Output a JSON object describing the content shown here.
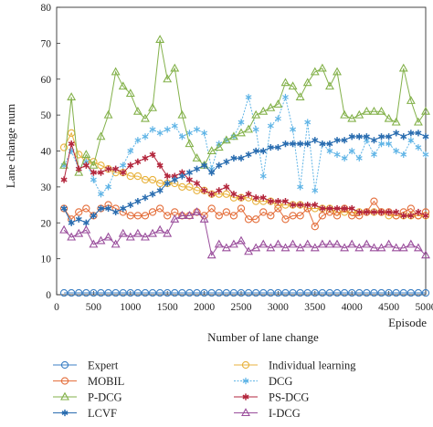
{
  "chart_data": {
    "type": "line",
    "xlabel": "Number of lane change",
    "ylabel": "Lane change num",
    "x_unit_label": "Episode",
    "xlim": [
      0,
      5000
    ],
    "ylim": [
      0,
      80
    ],
    "xticks": [
      0,
      500,
      1000,
      1500,
      2000,
      2500,
      3000,
      3500,
      4000,
      4500,
      5000
    ],
    "yticks": [
      0,
      10,
      20,
      30,
      40,
      50,
      60,
      70,
      80
    ],
    "grid": false,
    "legend_position": "bottom",
    "x": [
      100,
      200,
      300,
      400,
      500,
      600,
      700,
      800,
      900,
      1000,
      1100,
      1200,
      1300,
      1400,
      1500,
      1600,
      1700,
      1800,
      1900,
      2000,
      2100,
      2200,
      2300,
      2400,
      2500,
      2600,
      2700,
      2800,
      2900,
      3000,
      3100,
      3200,
      3300,
      3400,
      3500,
      3600,
      3700,
      3800,
      3900,
      4000,
      4100,
      4200,
      4300,
      4400,
      4500,
      4600,
      4700,
      4800,
      4900,
      5000
    ],
    "series": [
      {
        "name": "Expert",
        "color": "#3b7fc4",
        "marker": "circle",
        "values": [
          0.5,
          0.5,
          0.5,
          0.5,
          0.5,
          0.5,
          0.5,
          0.5,
          0.5,
          0.5,
          0.5,
          0.5,
          0.5,
          0.5,
          0.5,
          0.5,
          0.5,
          0.5,
          0.5,
          0.5,
          0.5,
          0.5,
          0.5,
          0.5,
          0.5,
          0.5,
          0.5,
          0.5,
          0.5,
          0.5,
          0.5,
          0.5,
          0.5,
          0.5,
          0.5,
          0.5,
          0.5,
          0.5,
          0.5,
          0.5,
          0.5,
          0.5,
          0.5,
          0.5,
          0.5,
          0.5,
          0.5,
          0.5,
          0.5,
          0.5
        ]
      },
      {
        "name": "Individual learning",
        "color": "#e8b23c",
        "marker": "circle",
        "values": [
          41,
          45,
          39,
          37,
          37,
          36,
          35,
          34,
          34,
          33,
          33,
          32,
          32,
          31,
          31,
          31,
          30,
          30,
          29,
          29,
          28,
          28,
          28,
          27,
          27,
          27,
          26,
          26,
          26,
          25,
          25,
          25,
          25,
          24,
          24,
          24,
          24,
          23,
          23,
          23,
          23,
          23,
          23,
          23,
          22,
          22,
          22,
          22,
          22,
          22
        ]
      },
      {
        "name": "MOBIL",
        "color": "#e46f3c",
        "marker": "circle",
        "values": [
          24,
          21,
          23,
          24,
          22,
          24,
          25,
          24,
          23,
          22,
          22,
          22,
          23,
          24,
          22,
          23,
          22,
          22,
          23,
          22,
          24,
          22,
          23,
          22,
          24,
          21,
          21,
          23,
          22,
          24,
          21,
          22,
          22,
          24,
          19,
          22,
          23,
          22,
          24,
          22,
          22,
          23,
          26,
          23,
          23,
          22,
          23,
          24,
          22,
          23
        ]
      },
      {
        "name": "DCG",
        "color": "#5fb4e6",
        "marker": "star",
        "values": [
          36,
          40,
          35,
          37,
          32,
          28,
          30,
          35,
          36,
          40,
          43,
          44,
          46,
          45,
          46,
          47,
          44,
          45,
          46,
          45,
          35,
          42,
          43,
          44,
          48,
          55,
          46,
          33,
          47,
          49,
          55,
          46,
          30,
          48,
          29,
          42,
          40,
          39,
          38,
          40,
          38,
          43,
          39,
          42,
          42,
          40,
          39,
          43,
          41,
          39
        ]
      },
      {
        "name": "P-DCG",
        "color": "#83b14a",
        "marker": "triangle",
        "values": [
          36,
          55,
          34,
          39,
          36,
          44,
          50,
          62,
          58,
          56,
          51,
          49,
          52,
          71,
          60,
          63,
          50,
          42,
          38,
          36,
          40,
          41,
          43,
          44,
          45,
          46,
          50,
          51,
          52,
          53,
          59,
          58,
          55,
          59,
          62,
          63,
          58,
          62,
          50,
          49,
          50,
          51,
          51,
          51,
          49,
          48,
          63,
          54,
          48,
          51
        ]
      },
      {
        "name": "PS-DCG",
        "color": "#b3263c",
        "marker": "asterisk",
        "values": [
          32,
          42,
          35,
          36,
          34,
          34,
          35,
          35,
          34,
          36,
          37,
          38,
          39,
          36,
          33,
          33,
          34,
          32,
          31,
          29,
          28,
          29,
          30,
          28,
          27,
          28,
          27,
          27,
          26,
          26,
          26,
          25,
          25,
          25,
          25,
          24,
          24,
          24,
          24,
          24,
          23,
          23,
          23,
          23,
          23,
          23,
          22,
          22,
          23,
          22
        ]
      },
      {
        "name": "LCVF",
        "color": "#2a6db0",
        "marker": "asterisk",
        "values": [
          24,
          20,
          21,
          20,
          22,
          24,
          24,
          23,
          24,
          25,
          26,
          27,
          28,
          29,
          31,
          32,
          33,
          34,
          35,
          36,
          34,
          36,
          37,
          38,
          38,
          39,
          40,
          40,
          41,
          41,
          42,
          42,
          42,
          42,
          43,
          42,
          42,
          43,
          43,
          44,
          44,
          44,
          43,
          44,
          44,
          45,
          44,
          45,
          45,
          44
        ]
      },
      {
        "name": "I-DCG",
        "color": "#9a4e9c",
        "marker": "triangle",
        "values": [
          18,
          16,
          17,
          18,
          14,
          15,
          16,
          14,
          17,
          16,
          17,
          16,
          17,
          18,
          17,
          21,
          22,
          22,
          23,
          21,
          11,
          14,
          13,
          14,
          15,
          12,
          13,
          14,
          13,
          14,
          13,
          14,
          13,
          14,
          13,
          14,
          14,
          14,
          13,
          14,
          13,
          14,
          13,
          13,
          14,
          13,
          13,
          14,
          13,
          11
        ]
      }
    ],
    "legend_order": [
      "Expert",
      "Individual learning",
      "MOBIL",
      "DCG",
      "P-DCG",
      "PS-DCG",
      "LCVF",
      "I-DCG"
    ]
  }
}
